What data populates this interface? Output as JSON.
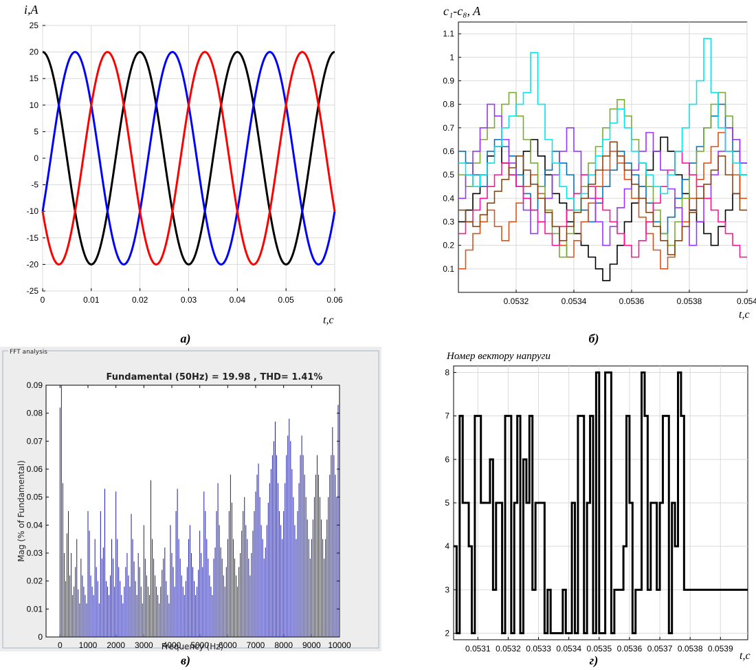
{
  "panel_labels": {
    "a": "а)",
    "b": "б)",
    "v": "в)",
    "g": "г)"
  },
  "chart_data": [
    {
      "id": "a",
      "type": "line",
      "ylabel": "i,A",
      "xlabel": "t,c",
      "xlim": [
        0,
        0.06
      ],
      "ylim": [
        -25,
        25
      ],
      "xticks": [
        "0",
        "0.01",
        "0.02",
        "0.03",
        "0.04",
        "0.05",
        "0.06"
      ],
      "yticks": [
        "-25",
        "-20",
        "-15",
        "-10",
        "-5",
        "0",
        "5",
        "10",
        "15",
        "20",
        "25"
      ],
      "grid": true,
      "series": [
        {
          "color": "#000000",
          "amplitude": 20,
          "frequency_hz": 50,
          "phase_deg": 90,
          "x": [
            0,
            0.0025,
            0.005,
            0.0075,
            0.01,
            0.0125,
            0.015,
            0.0175,
            0.02,
            0.0225,
            0.025,
            0.0275,
            0.03,
            0.0325,
            0.035,
            0.0375,
            0.04,
            0.0425,
            0.045,
            0.0475,
            0.05,
            0.0525,
            0.055,
            0.0575,
            0.06
          ],
          "y": [
            20,
            14.1,
            0,
            -14.1,
            -20,
            -14.1,
            0,
            14.1,
            20,
            14.1,
            0,
            -14.1,
            -20,
            -14.1,
            0,
            14.1,
            20,
            14.1,
            0,
            -14.1,
            -20,
            -14.1,
            0,
            14.1,
            20
          ]
        },
        {
          "color": "#0000ff",
          "amplitude": 20,
          "frequency_hz": 50,
          "phase_deg": -30,
          "x": [
            0,
            0.0025,
            0.005,
            0.0075,
            0.01,
            0.0125,
            0.015,
            0.0175,
            0.02,
            0.0225,
            0.025,
            0.0275,
            0.03,
            0.0325,
            0.035,
            0.0375,
            0.04,
            0.0425,
            0.045,
            0.0475,
            0.05,
            0.0525,
            0.055,
            0.0575,
            0.06
          ],
          "y": [
            -10,
            5.2,
            17.3,
            19.3,
            10,
            -5.2,
            -17.3,
            -19.3,
            -10,
            5.2,
            17.3,
            19.3,
            10,
            -5.2,
            -17.3,
            -19.3,
            -10,
            5.2,
            17.3,
            19.3,
            10,
            -5.2,
            -17.3,
            -19.3,
            -10
          ]
        },
        {
          "color": "#ff0000",
          "amplitude": 20,
          "frequency_hz": 50,
          "phase_deg": 210,
          "x": [
            0,
            0.0025,
            0.005,
            0.0075,
            0.01,
            0.0125,
            0.015,
            0.0175,
            0.02,
            0.0225,
            0.025,
            0.0275,
            0.03,
            0.0325,
            0.035,
            0.0375,
            0.04,
            0.0425,
            0.045,
            0.0475,
            0.05,
            0.0525,
            0.055,
            0.0575,
            0.06
          ],
          "y": [
            -10,
            -19.3,
            -17.3,
            -5.2,
            10,
            19.3,
            17.3,
            5.2,
            -10,
            -19.3,
            -17.3,
            -5.2,
            10,
            19.3,
            17.3,
            5.2,
            -10,
            -19.3,
            -17.3,
            -5.2,
            10,
            19.3,
            17.3,
            5.2,
            -10
          ]
        }
      ]
    },
    {
      "id": "b",
      "type": "line",
      "ylabel": "c₁-c₈, A",
      "xlabel": "t,c",
      "xlim": [
        0.053,
        0.054
      ],
      "ylim": [
        0,
        1.15
      ],
      "xticks": [
        "0.0532",
        "0.0534",
        "0.0536",
        "0.0538",
        "0.054"
      ],
      "yticks": [
        "0.1",
        "0.2",
        "0.3",
        "0.4",
        "0.5",
        "0.6",
        "0.7",
        "0.8",
        "0.9",
        "1",
        "1.1"
      ],
      "grid": true,
      "step_interval": 1e-05,
      "series": [
        {
          "color": "#000000",
          "values": [
            0.3,
            0.35,
            0.42,
            0.5,
            0.58,
            0.62,
            0.55,
            0.5,
            0.45,
            0.6,
            0.65,
            0.58,
            0.5,
            0.42,
            0.38,
            0.3,
            0.25,
            0.2,
            0.15,
            0.1,
            0.05,
            0.12,
            0.2,
            0.3,
            0.38,
            0.45,
            0.52,
            0.6,
            0.66,
            0.6,
            0.5,
            0.42,
            0.35,
            0.3,
            0.25,
            0.2,
            0.28,
            0.35,
            0.42,
            0.5
          ]
        },
        {
          "color": "#0072bd",
          "values": [
            0.6,
            0.55,
            0.5,
            0.45,
            0.6,
            0.65,
            0.62,
            0.58,
            0.5,
            0.42,
            0.35,
            0.45,
            0.52,
            0.6,
            0.55,
            0.5,
            0.42,
            0.35,
            0.3,
            0.38,
            0.45,
            0.52,
            0.6,
            0.55,
            0.5,
            0.45,
            0.38,
            0.3,
            0.25,
            0.32,
            0.4,
            0.48,
            0.55,
            0.62,
            0.7,
            0.75,
            0.8,
            0.7,
            0.6,
            0.55
          ]
        },
        {
          "color": "#d95319",
          "values": [
            0.1,
            0.18,
            0.25,
            0.3,
            0.35,
            0.28,
            0.22,
            0.3,
            0.38,
            0.45,
            0.5,
            0.42,
            0.35,
            0.28,
            0.2,
            0.15,
            0.22,
            0.3,
            0.38,
            0.45,
            0.52,
            0.6,
            0.55,
            0.48,
            0.4,
            0.32,
            0.25,
            0.18,
            0.1,
            0.15,
            0.22,
            0.3,
            0.4,
            0.48,
            0.55,
            0.62,
            0.68,
            0.6,
            0.5,
            0.4
          ]
        },
        {
          "color": "#77ac30",
          "values": [
            0.5,
            0.45,
            0.55,
            0.65,
            0.7,
            0.75,
            0.8,
            0.85,
            0.75,
            0.65,
            0.55,
            0.45,
            0.35,
            0.25,
            0.15,
            0.25,
            0.35,
            0.45,
            0.55,
            0.62,
            0.7,
            0.78,
            0.82,
            0.75,
            0.65,
            0.55,
            0.45,
            0.35,
            0.25,
            0.2,
            0.3,
            0.4,
            0.5,
            0.6,
            0.7,
            0.8,
            0.85,
            0.75,
            0.65,
            0.5
          ]
        },
        {
          "color": "#9933ff",
          "values": [
            0.4,
            0.5,
            0.6,
            0.7,
            0.8,
            0.75,
            0.65,
            0.55,
            0.45,
            0.35,
            0.25,
            0.3,
            0.4,
            0.5,
            0.6,
            0.7,
            0.6,
            0.5,
            0.4,
            0.3,
            0.2,
            0.28,
            0.36,
            0.44,
            0.52,
            0.6,
            0.68,
            0.6,
            0.52,
            0.44,
            0.36,
            0.28,
            0.2,
            0.3,
            0.4,
            0.5,
            0.6,
            0.7,
            0.65,
            0.55
          ]
        },
        {
          "color": "#ff1493",
          "values": [
            0.25,
            0.3,
            0.35,
            0.4,
            0.45,
            0.5,
            0.55,
            0.5,
            0.45,
            0.4,
            0.35,
            0.3,
            0.25,
            0.2,
            0.28,
            0.35,
            0.42,
            0.5,
            0.45,
            0.4,
            0.35,
            0.3,
            0.25,
            0.2,
            0.15,
            0.22,
            0.3,
            0.38,
            0.45,
            0.52,
            0.6,
            0.55,
            0.5,
            0.45,
            0.4,
            0.35,
            0.3,
            0.25,
            0.2,
            0.15
          ]
        },
        {
          "color": "#00e5ee",
          "values": [
            0.55,
            0.5,
            0.45,
            0.5,
            0.55,
            0.62,
            0.7,
            0.75,
            0.8,
            0.85,
            1.02,
            0.8,
            0.65,
            0.55,
            0.45,
            0.4,
            0.35,
            0.42,
            0.5,
            0.58,
            0.65,
            0.72,
            0.78,
            0.7,
            0.6,
            0.55,
            0.5,
            0.45,
            0.42,
            0.5,
            0.6,
            0.7,
            0.8,
            0.9,
            1.08,
            0.85,
            0.7,
            0.6,
            0.55,
            0.5
          ]
        },
        {
          "color": "#8b4513",
          "values": [
            0.35,
            0.3,
            0.28,
            0.33,
            0.38,
            0.43,
            0.48,
            0.53,
            0.58,
            0.52,
            0.46,
            0.4,
            0.34,
            0.28,
            0.22,
            0.28,
            0.34,
            0.4,
            0.46,
            0.52,
            0.58,
            0.64,
            0.58,
            0.52,
            0.46,
            0.4,
            0.34,
            0.28,
            0.22,
            0.16,
            0.22,
            0.28,
            0.34,
            0.4,
            0.46,
            0.52,
            0.58,
            0.5,
            0.42,
            0.35
          ]
        }
      ]
    },
    {
      "id": "v",
      "type": "bar",
      "frame_title": "FFT analysis",
      "title": "Fundamental (50Hz) = 19.98 , THD= 1.41%",
      "xlabel": "Frequency (Hz)",
      "ylabel": "Mag (% of Fundamental)",
      "xlim": [
        -500,
        10000
      ],
      "ylim": [
        0,
        0.09
      ],
      "xticks": [
        "0",
        "1000",
        "2000",
        "3000",
        "4000",
        "5000",
        "6000",
        "7000",
        "8000",
        "9000",
        "10000"
      ],
      "yticks": [
        "0",
        "0.01",
        "0.02",
        "0.03",
        "0.04",
        "0.05",
        "0.06",
        "0.07",
        "0.08",
        "0.09"
      ],
      "bar_spacing_hz": 50,
      "values": [
        0.082,
        0.09,
        0.055,
        0.03,
        0.02,
        0.037,
        0.045,
        0.022,
        0.03,
        0.015,
        0.018,
        0.025,
        0.035,
        0.017,
        0.012,
        0.028,
        0.022,
        0.018,
        0.015,
        0.012,
        0.045,
        0.038,
        0.022,
        0.018,
        0.015,
        0.035,
        0.025,
        0.02,
        0.012,
        0.045,
        0.028,
        0.032,
        0.053,
        0.02,
        0.018,
        0.015,
        0.022,
        0.035,
        0.028,
        0.018,
        0.052,
        0.035,
        0.025,
        0.02,
        0.015,
        0.012,
        0.018,
        0.025,
        0.03,
        0.022,
        0.018,
        0.044,
        0.035,
        0.027,
        0.02,
        0.015,
        0.03,
        0.025,
        0.018,
        0.012,
        0.04,
        0.028,
        0.022,
        0.018,
        0.015,
        0.056,
        0.035,
        0.028,
        0.022,
        0.018,
        0.015,
        0.012,
        0.018,
        0.024,
        0.028,
        0.032,
        0.02,
        0.015,
        0.012,
        0.04,
        0.03,
        0.025,
        0.018,
        0.045,
        0.053,
        0.035,
        0.028,
        0.022,
        0.018,
        0.015,
        0.02,
        0.025,
        0.035,
        0.04,
        0.03,
        0.025,
        0.02,
        0.015,
        0.018,
        0.024,
        0.038,
        0.03,
        0.025,
        0.052,
        0.045,
        0.035,
        0.028,
        0.022,
        0.018,
        0.015,
        0.028,
        0.032,
        0.045,
        0.055,
        0.04,
        0.032,
        0.028,
        0.022,
        0.018,
        0.025,
        0.035,
        0.045,
        0.058,
        0.048,
        0.035,
        0.028,
        0.022,
        0.018,
        0.025,
        0.03,
        0.038,
        0.045,
        0.05,
        0.04,
        0.035,
        0.028,
        0.022,
        0.03,
        0.038,
        0.045,
        0.052,
        0.058,
        0.062,
        0.05,
        0.04,
        0.035,
        0.028,
        0.032,
        0.04,
        0.048,
        0.055,
        0.06,
        0.065,
        0.07,
        0.077,
        0.065,
        0.055,
        0.045,
        0.04,
        0.035,
        0.045,
        0.055,
        0.065,
        0.072,
        0.078,
        0.07,
        0.06,
        0.05,
        0.04,
        0.035,
        0.045,
        0.055,
        0.065,
        0.072,
        0.065,
        0.058,
        0.05,
        0.042,
        0.035,
        0.028,
        0.035,
        0.042,
        0.05,
        0.058,
        0.065,
        0.058,
        0.05,
        0.042,
        0.035,
        0.028,
        0.035,
        0.042,
        0.05,
        0.058,
        0.065,
        0.075,
        0.065,
        0.058,
        0.05,
        0.083
      ]
    },
    {
      "id": "g",
      "type": "line",
      "title": "Номер вектору напруги",
      "xlabel": "t,c",
      "xlim": [
        0.05302,
        0.05399
      ],
      "ylim": [
        1.85,
        8.15
      ],
      "xticks": [
        "0.0531",
        "0.0532",
        "0.0533",
        "0.0534",
        "0.0535",
        "0.0536",
        "0.0537",
        "0.0538",
        "0.0539"
      ],
      "yticks": [
        "2",
        "3",
        "4",
        "5",
        "6",
        "7",
        "8"
      ],
      "grid": true,
      "step_x": [
        0.05302,
        0.05303,
        0.05304,
        0.05305,
        0.05306,
        0.05307,
        0.05308,
        0.05309,
        0.0531,
        0.05311,
        0.05312,
        0.05313,
        0.05314,
        0.05315,
        0.05316,
        0.05317,
        0.05318,
        0.05319,
        0.0532,
        0.05321,
        0.05322,
        0.05323,
        0.05324,
        0.05325,
        0.05326,
        0.05327,
        0.05328,
        0.05329,
        0.0533,
        0.05331,
        0.05332,
        0.05333,
        0.05334,
        0.05335,
        0.05336,
        0.05337,
        0.05338,
        0.05339,
        0.0534,
        0.05341,
        0.05342,
        0.05343,
        0.05344,
        0.05345,
        0.05346,
        0.05347,
        0.05348,
        0.05349,
        0.0535,
        0.05351,
        0.05352,
        0.05353,
        0.05354,
        0.05355,
        0.05356,
        0.05357,
        0.05358,
        0.05359,
        0.0536,
        0.05361,
        0.05362,
        0.05363,
        0.05364,
        0.05365,
        0.05366,
        0.05367,
        0.05368,
        0.05369,
        0.0537,
        0.05371,
        0.05372,
        0.05373,
        0.05374,
        0.05375,
        0.05376,
        0.05377,
        0.05378,
        0.05379,
        0.0538,
        0.05381,
        0.05382,
        0.05383,
        0.05384,
        0.05385,
        0.05386,
        0.05387,
        0.05388,
        0.05389,
        0.0539,
        0.05391,
        0.05392,
        0.05393,
        0.05394,
        0.05395,
        0.05396,
        0.05397,
        0.05398
      ],
      "step_y": [
        4,
        2,
        7,
        5,
        5,
        4,
        2,
        7,
        7,
        5,
        5,
        5,
        6,
        3,
        5,
        5,
        2,
        7,
        7,
        2,
        5,
        7,
        2,
        6,
        5,
        7,
        3,
        5,
        5,
        5,
        2,
        3,
        2,
        2,
        2,
        2,
        3,
        2,
        2,
        5,
        2,
        7,
        7,
        2,
        5,
        7,
        2,
        8,
        2,
        2,
        8,
        8,
        2,
        3,
        3,
        3,
        4,
        7,
        5,
        2,
        3,
        3,
        8,
        7,
        3,
        5,
        5,
        3,
        5,
        7,
        7,
        2,
        5,
        4,
        8,
        7,
        3,
        3,
        3,
        3,
        3,
        3,
        3,
        3,
        3,
        3,
        3,
        3,
        3,
        3,
        3,
        3,
        3,
        3,
        3,
        3,
        3
      ]
    }
  ]
}
